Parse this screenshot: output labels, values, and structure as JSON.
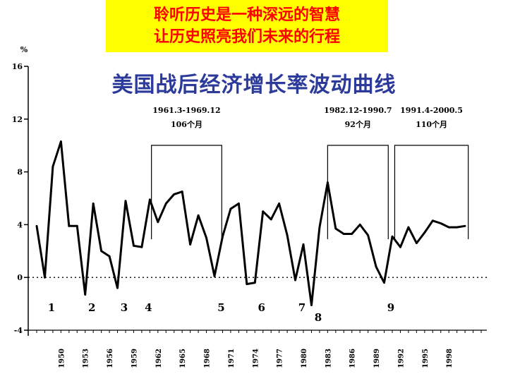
{
  "banner": {
    "line1": "聆听历史是一种深远的智慧",
    "line2": "让历史照亮我们未来的行程"
  },
  "colors": {
    "banner_bg": "#ffff00",
    "banner_text": "#ff0000",
    "subtitle": "#2b3a9b"
  },
  "chart_data": {
    "type": "line",
    "title": "美国战后经济增长率波动曲线",
    "ylabel": "%",
    "ylim": [
      -4,
      16
    ],
    "yticks": [
      -4,
      0,
      4,
      8,
      12,
      16
    ],
    "xlim": [
      1947,
      2002
    ],
    "xticks": [
      "1950",
      "1953",
      "1956",
      "1959",
      "1962",
      "1965",
      "1968",
      "1971",
      "1974",
      "1977",
      "1980",
      "1983",
      "1986",
      "1989",
      "1992",
      "1995",
      "1998"
    ],
    "series": [
      {
        "name": "经济增长率",
        "x": [
          1947,
          1948,
          1949,
          1950,
          1951,
          1952,
          1953,
          1954,
          1955,
          1956,
          1957,
          1958,
          1959,
          1960,
          1961,
          1962,
          1963,
          1964,
          1965,
          1966,
          1967,
          1968,
          1969,
          1970,
          1971,
          1972,
          1973,
          1974,
          1975,
          1976,
          1977,
          1978,
          1979,
          1980,
          1981,
          1982,
          1983,
          1984,
          1985,
          1986,
          1987,
          1988,
          1989,
          1990,
          1991,
          1992,
          1993,
          1994,
          1995,
          1996,
          1997,
          1998,
          1999,
          2000
        ],
        "values": [
          3.9,
          0.0,
          8.4,
          10.3,
          3.9,
          3.9,
          -1.3,
          5.6,
          2.0,
          1.6,
          -0.8,
          5.8,
          2.4,
          2.3,
          5.9,
          4.2,
          5.6,
          6.3,
          6.5,
          2.5,
          4.7,
          3.0,
          0.1,
          3.1,
          5.2,
          5.6,
          -0.5,
          -0.4,
          5.0,
          4.4,
          5.6,
          3.2,
          -0.2,
          2.5,
          -2.1,
          3.8,
          7.2,
          3.7,
          3.3,
          3.3,
          4.0,
          3.2,
          0.8,
          -0.4,
          3.1,
          2.3,
          3.8,
          2.6,
          3.4,
          4.3,
          4.1,
          3.8,
          3.8,
          3.9
        ]
      }
    ],
    "troughs": [
      {
        "label": "1",
        "year": 1949
      },
      {
        "label": "2",
        "year": 1954
      },
      {
        "label": "3",
        "year": 1958
      },
      {
        "label": "4",
        "year": 1961
      },
      {
        "label": "5",
        "year": 1970
      },
      {
        "label": "6",
        "year": 1975
      },
      {
        "label": "7",
        "year": 1980
      },
      {
        "label": "8",
        "year": 1982
      },
      {
        "label": "9",
        "year": 1991
      }
    ],
    "annotations": [
      {
        "period": "1961.3-1969.12",
        "duration": "106个月",
        "start": 1961.2,
        "end": 1969.9
      },
      {
        "period": "1982.12-1990.7",
        "duration": "92个月",
        "start": 1983.0,
        "end": 1990.5
      },
      {
        "period": "1991.4-2000.5",
        "duration": "110个月",
        "start": 1991.3,
        "end": 2000.4
      }
    ]
  }
}
